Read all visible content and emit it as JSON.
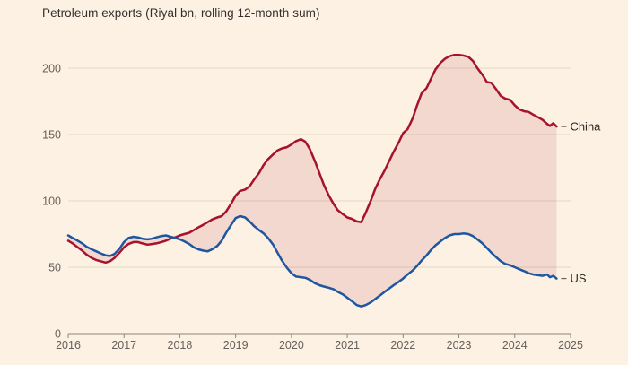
{
  "chart": {
    "title": "Petroleum exports (Riyal bn, rolling 12-month sum)"
  },
  "chart_data": {
    "type": "line",
    "title": "Petroleum exports (Riyal bn, rolling 12-month sum)",
    "xlabel": "",
    "ylabel": "Riyal bn, rolling 12-month sum",
    "x_range": [
      2016,
      2025
    ],
    "y_range": [
      0,
      220
    ],
    "x_ticks": [
      2016,
      2017,
      2018,
      2019,
      2020,
      2021,
      2022,
      2023,
      2024,
      2025
    ],
    "y_ticks": [
      0,
      50,
      100,
      150,
      200
    ],
    "grid": "horizontal",
    "legend_position": "line-end-labels-right",
    "fill_between_series": true,
    "colors": {
      "background": "#fdf1e3",
      "gridline": "#e2d6c6",
      "axis": "#8f8779",
      "tick_text": "#66605b",
      "title_text": "#33302c",
      "label_text": "#2b2825",
      "china_line": "#a5132c",
      "us_line": "#1e56a0",
      "fill": "rgba(165,19,44,0.11)"
    },
    "x": [
      2016,
      2016.08,
      2016.17,
      2016.25,
      2016.33,
      2016.42,
      2016.5,
      2016.58,
      2016.67,
      2016.75,
      2016.83,
      2016.92,
      2017,
      2017.08,
      2017.17,
      2017.25,
      2017.33,
      2017.42,
      2017.5,
      2017.58,
      2017.67,
      2017.75,
      2017.83,
      2017.92,
      2018,
      2018.08,
      2018.17,
      2018.25,
      2018.33,
      2018.42,
      2018.5,
      2018.58,
      2018.67,
      2018.75,
      2018.83,
      2018.92,
      2019,
      2019.08,
      2019.17,
      2019.25,
      2019.33,
      2019.42,
      2019.5,
      2019.58,
      2019.67,
      2019.75,
      2019.83,
      2019.92,
      2020,
      2020.08,
      2020.17,
      2020.25,
      2020.33,
      2020.42,
      2020.5,
      2020.58,
      2020.67,
      2020.75,
      2020.83,
      2020.92,
      2021,
      2021.08,
      2021.17,
      2021.25,
      2021.33,
      2021.42,
      2021.5,
      2021.58,
      2021.67,
      2021.75,
      2021.83,
      2021.92,
      2022,
      2022.08,
      2022.17,
      2022.25,
      2022.33,
      2022.42,
      2022.5,
      2022.58,
      2022.67,
      2022.75,
      2022.83,
      2022.92,
      2023,
      2023.08,
      2023.17,
      2023.25,
      2023.33,
      2023.42,
      2023.5,
      2023.58,
      2023.67,
      2023.75,
      2023.83,
      2023.92,
      2024,
      2024.08,
      2024.17,
      2024.25,
      2024.33,
      2024.42,
      2024.5,
      2024.58,
      2024.63,
      2024.69,
      2024.75
    ],
    "series": [
      {
        "name": "China",
        "label": "China",
        "color": "#a5132c",
        "values": [
          70,
          68,
          65,
          62.5,
          59.5,
          57,
          55.5,
          54.5,
          53.5,
          54.5,
          57,
          61,
          65,
          67.5,
          69,
          69,
          68,
          67,
          67.5,
          68,
          69,
          70,
          71.5,
          72.5,
          74,
          75,
          76,
          78,
          80,
          82,
          84,
          86,
          87.5,
          88.5,
          92,
          98,
          104,
          107.5,
          108.5,
          111,
          116,
          121,
          127,
          131.5,
          135,
          138,
          139.5,
          140.5,
          142.5,
          145,
          146.5,
          144.5,
          139,
          130,
          121,
          112,
          104,
          98,
          93,
          90,
          87.5,
          86.5,
          84.5,
          84,
          91,
          100,
          109,
          116,
          123,
          130,
          137,
          144,
          151,
          154,
          162,
          172,
          181,
          185,
          192,
          199,
          204,
          207,
          209,
          210,
          210,
          209.5,
          208.5,
          205.5,
          200,
          195,
          189.5,
          189,
          184,
          179,
          177,
          176,
          172,
          169,
          167.5,
          167,
          165,
          163,
          161,
          158,
          156.5,
          158.5,
          156
        ]
      },
      {
        "name": "US",
        "label": "US",
        "color": "#1e56a0",
        "values": [
          74,
          72,
          70,
          68,
          65.5,
          63.5,
          62,
          60.5,
          59,
          58.5,
          60,
          64,
          69,
          72,
          73,
          72.5,
          71.5,
          71,
          71.5,
          72.5,
          73.5,
          74,
          73,
          72,
          71,
          69.5,
          67.5,
          65,
          63.5,
          62.5,
          62,
          63.5,
          66,
          70,
          76,
          82,
          87,
          88.5,
          87.5,
          84.5,
          81,
          78,
          75.5,
          72,
          67,
          61,
          55,
          49.5,
          45.5,
          43,
          42.5,
          42,
          40.5,
          38,
          36.5,
          35.5,
          34.5,
          33.5,
          31.5,
          29.5,
          27,
          24.5,
          21.5,
          20.5,
          21.5,
          23.5,
          26,
          28.5,
          31.5,
          34,
          36.5,
          39,
          41.5,
          44.5,
          47.5,
          51,
          55,
          59,
          63,
          66.5,
          69.5,
          72,
          74,
          75,
          75,
          75.5,
          75,
          73.5,
          71,
          68,
          64.5,
          61,
          57.5,
          54.5,
          52.5,
          51.5,
          50,
          48.5,
          47,
          45.5,
          44.5,
          44,
          43.5,
          44.5,
          42.5,
          43.5,
          41.5
        ]
      }
    ]
  }
}
